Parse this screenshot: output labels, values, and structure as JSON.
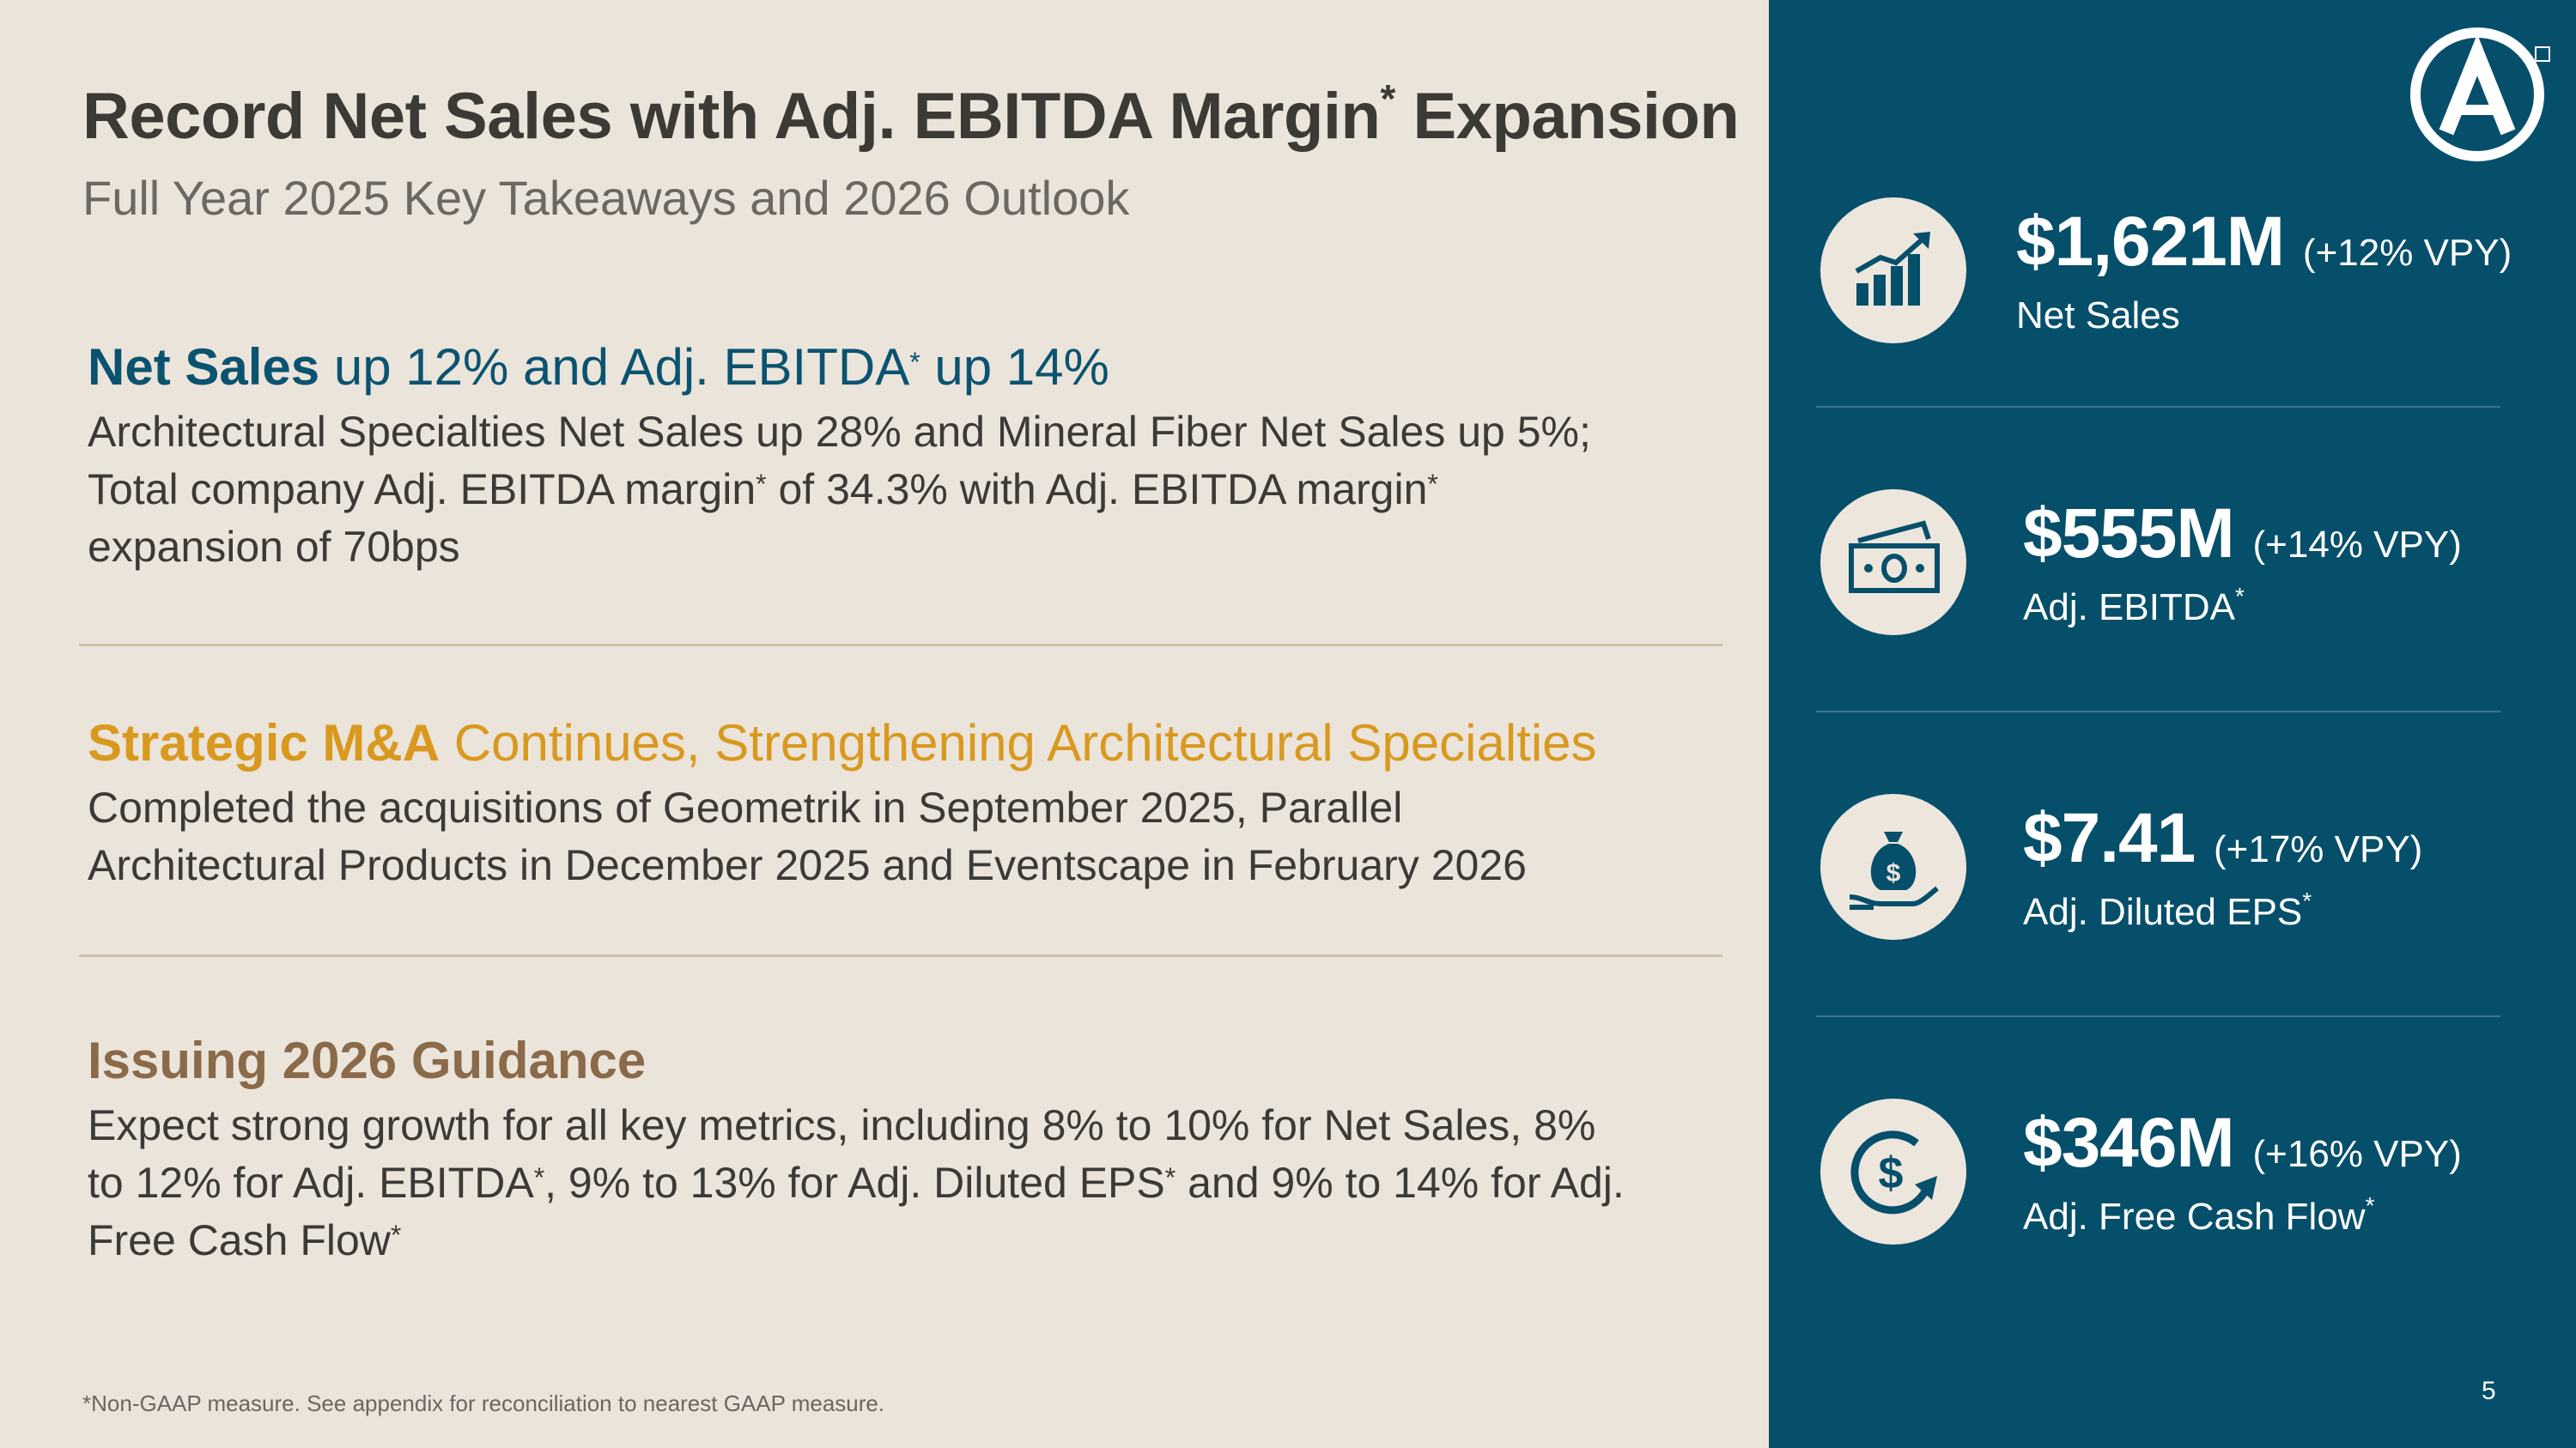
{
  "header": {
    "title": "Record Net Sales with Adj. EBITDA Margin",
    "title_asterisk": "*",
    "title_suffix": "Expansion",
    "subtitle": "Full Year 2025 Key Takeaways and 2026 Outlook"
  },
  "sections": [
    {
      "head_bold": "Net Sales",
      "head_rest_1": "up 12% and Adj. EBITDA",
      "head_rest_2": "up 14%",
      "body_1": "Architectural Specialties Net Sales up 28% and Mineral Fiber Net Sales up 5%;",
      "body_2a": "Total company Adj. EBITDA margin",
      "body_2b": "of 34.3% with Adj. EBITDA margin",
      "body_3": "expansion of 70bps"
    },
    {
      "head_bold": "Strategic M&A",
      "head_rest": "Continues, Strengthening Architectural Specialties",
      "body_1": "Completed the acquisitions of Geometrik in September 2025, Parallel",
      "body_2": "Architectural Products in December 2025 and Eventscape in February 2026"
    },
    {
      "head_bold": "Issuing 2026 Guidance",
      "body_1": "Expect strong growth for all key metrics, including 8% to 10% for Net Sales, 8%",
      "body_2a": "to 12% for Adj. EBITDA",
      "body_2b": ", 9% to 13% for Adj. Diluted EPS",
      "body_2c": "and 9% to 14% for Adj.",
      "body_3": "Free Cash Flow"
    }
  ],
  "asterisk": "*",
  "footnote": "*Non-GAAP measure. See appendix for reconciliation to nearest GAAP measure.",
  "stats": [
    {
      "value": "$1,621M",
      "change": "(+12% VPY)",
      "label": "Net Sales",
      "label_asterisk": "",
      "icon": "bar-chart-growth-icon"
    },
    {
      "value": "$555M",
      "change": "(+14% VPY)",
      "label": "Adj. EBITDA",
      "label_asterisk": "*",
      "icon": "cash-bills-icon"
    },
    {
      "value": "$7.41",
      "change": "(+17% VPY)",
      "label": "Adj. Diluted EPS",
      "label_asterisk": "*",
      "icon": "money-bag-hand-icon"
    },
    {
      "value": "$346M",
      "change": "(+16% VPY)",
      "label": "Adj. Free Cash Flow",
      "label_asterisk": "*",
      "icon": "dollar-cycle-icon"
    }
  ],
  "page_number": "5",
  "colors": {
    "background": "#ebe4da",
    "panel": "#064f6b",
    "teal_heading": "#0a5370",
    "gold_heading": "#d9991f",
    "brown_heading": "#8a6a49"
  }
}
